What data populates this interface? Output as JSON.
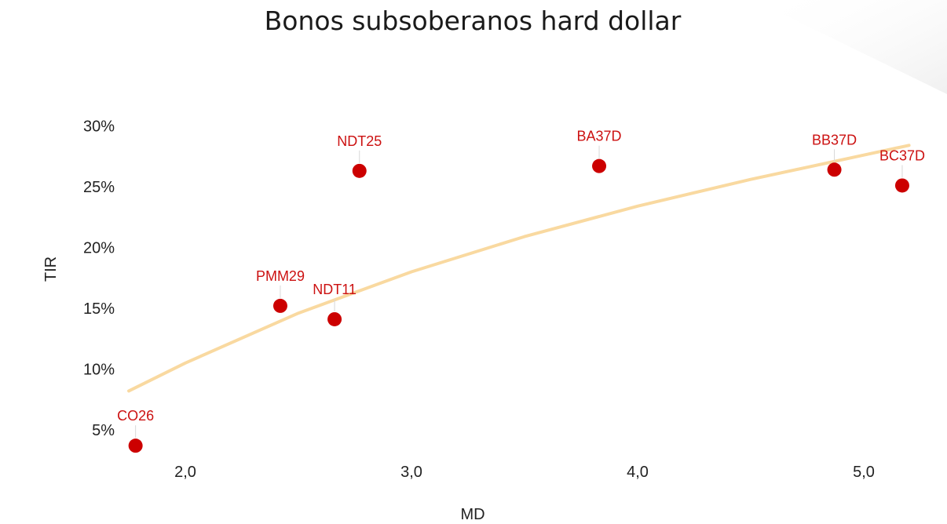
{
  "chart_data": {
    "type": "scatter",
    "title": "Bonos subsoberanos hard dollar",
    "xlabel": "MD",
    "ylabel": "TIR",
    "xlim": [
      1.7,
      5.35
    ],
    "ylim": [
      3.5,
      31.5
    ],
    "x_ticks": [
      2.0,
      3.0,
      4.0,
      5.0
    ],
    "x_tick_labels": [
      "2,0",
      "3,0",
      "4,0",
      "5,0"
    ],
    "y_ticks": [
      5,
      10,
      15,
      20,
      25,
      30
    ],
    "y_tick_labels": [
      "5%",
      "10%",
      "15%",
      "20%",
      "25%",
      "30%"
    ],
    "grid": false,
    "point_color": "#cc0000",
    "label_color": "#cc1111",
    "trendline": {
      "type": "logarithmic",
      "color": "#f9d9a0",
      "x": [
        1.75,
        2.0,
        2.5,
        3.0,
        3.5,
        4.0,
        4.5,
        5.0,
        5.2
      ],
      "y": [
        8.2,
        10.5,
        14.6,
        18.0,
        20.9,
        23.4,
        25.6,
        27.6,
        28.4
      ]
    },
    "points": [
      {
        "name": "CO26",
        "x": 1.78,
        "y": 3.7
      },
      {
        "name": "PMM29",
        "x": 2.42,
        "y": 15.2
      },
      {
        "name": "NDT11",
        "x": 2.66,
        "y": 14.1
      },
      {
        "name": "NDT25",
        "x": 2.77,
        "y": 26.3
      },
      {
        "name": "BA37D",
        "x": 3.83,
        "y": 26.7
      },
      {
        "name": "BB37D",
        "x": 4.87,
        "y": 26.4
      },
      {
        "name": "BC37D",
        "x": 5.17,
        "y": 25.1
      }
    ]
  }
}
